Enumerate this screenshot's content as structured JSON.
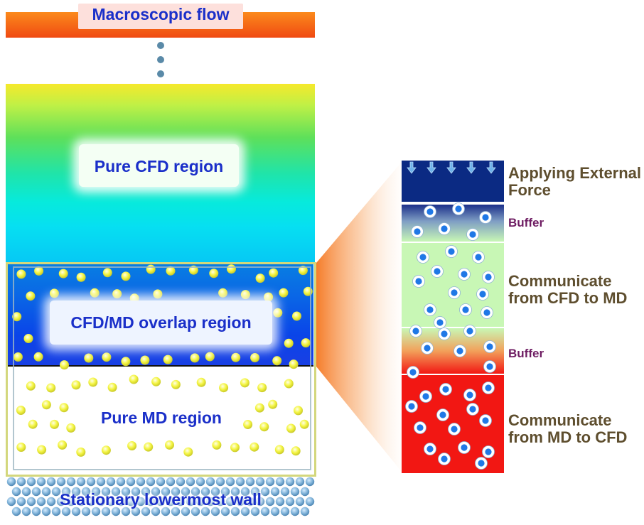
{
  "labels": {
    "macroscopic_flow": "Macroscopic flow",
    "pure_cfd": "Pure CFD region",
    "overlap": "CFD/MD overlap region",
    "pure_md": "Pure MD region",
    "wall": "Stationary lowermost wall"
  },
  "zoom": {
    "external_force": "Applying External Force",
    "buffer_top": "Buffer",
    "communicate_cfd_md": "Communicate from CFD to MD",
    "buffer_bottom": "Buffer",
    "communicate_md_cfd": "Communicate from MD to CFD"
  },
  "colors": {
    "label_text": "#1a2fc9",
    "zoom_text": "#5e4e2e",
    "buffer_text": "#6e1c62",
    "particle_fill": "#f4f542",
    "wall_particle": "#7fb2d8",
    "molecule_core": "#1f78e6",
    "external_force_band": "#0b2a83",
    "comm_cfd_md_band": "#c8f7b5",
    "comm_md_cfd_band": "#f21713"
  }
}
